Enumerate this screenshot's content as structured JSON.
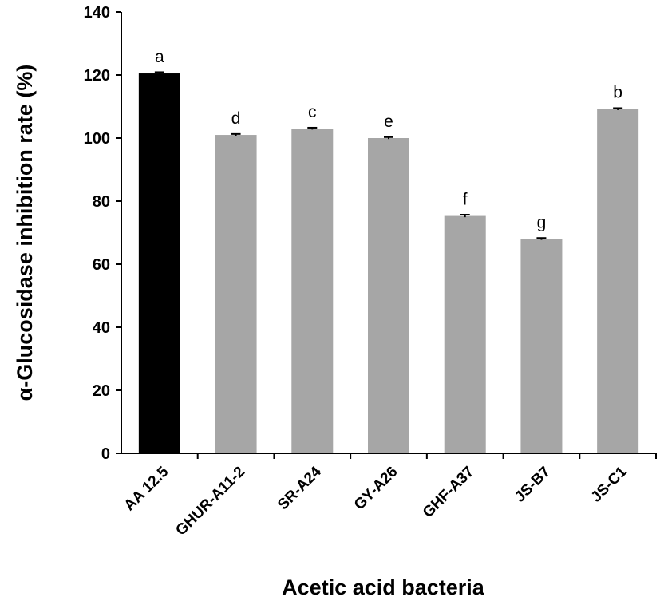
{
  "chart_data": {
    "type": "bar",
    "xlabel": "Acetic acid bacteria",
    "ylabel": "α-Glucosidase inhibition rate (%)",
    "ylim": [
      0,
      140
    ],
    "yticks": [
      0,
      20,
      40,
      60,
      80,
      100,
      120,
      140
    ],
    "grid": false,
    "legend": "none",
    "categories": [
      "AA 12.5",
      "GHUR-A11-2",
      "SR-A24",
      "GY-A26",
      "GHF-A37",
      "JS-B7",
      "JS-C1"
    ],
    "values": [
      120.5,
      101.0,
      103.0,
      100.0,
      75.3,
      68.0,
      109.2
    ],
    "errors": [
      0.4,
      0.3,
      0.3,
      0.3,
      0.4,
      0.3,
      0.3
    ],
    "significance_letters": [
      "a",
      "d",
      "c",
      "e",
      "f",
      "g",
      "b"
    ],
    "bar_colors": [
      "#000000",
      "#a6a6a6",
      "#a6a6a6",
      "#a6a6a6",
      "#a6a6a6",
      "#a6a6a6",
      "#a6a6a6"
    ]
  }
}
